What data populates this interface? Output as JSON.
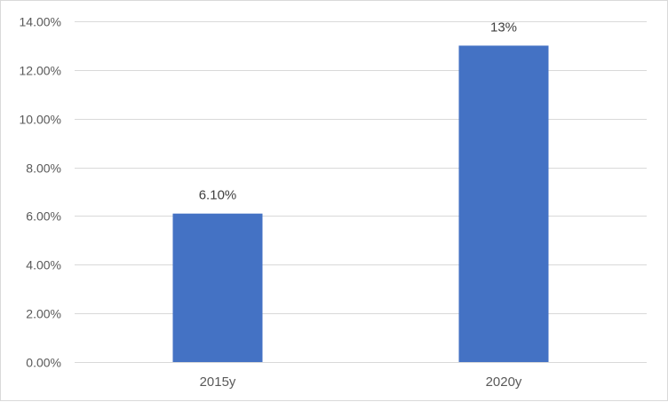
{
  "chart_data": {
    "type": "bar",
    "title": "",
    "xlabel": "",
    "ylabel": "",
    "categories": [
      "2015y",
      "2020y"
    ],
    "values": [
      0.061,
      0.13
    ],
    "data_labels": [
      "6.10%",
      "13%"
    ],
    "ylim": [
      0,
      0.14
    ],
    "y_ticks": [
      0,
      0.02,
      0.04,
      0.06,
      0.08,
      0.1,
      0.12,
      0.14
    ],
    "y_tick_labels": [
      "0.00%",
      "2.00%",
      "4.00%",
      "6.00%",
      "8.00%",
      "10.00%",
      "12.00%",
      "14.00%"
    ],
    "grid": true,
    "legend": "none",
    "colors": {
      "bar": "#4472C4",
      "grid": "#d9d9d9",
      "text": "#595959"
    }
  }
}
